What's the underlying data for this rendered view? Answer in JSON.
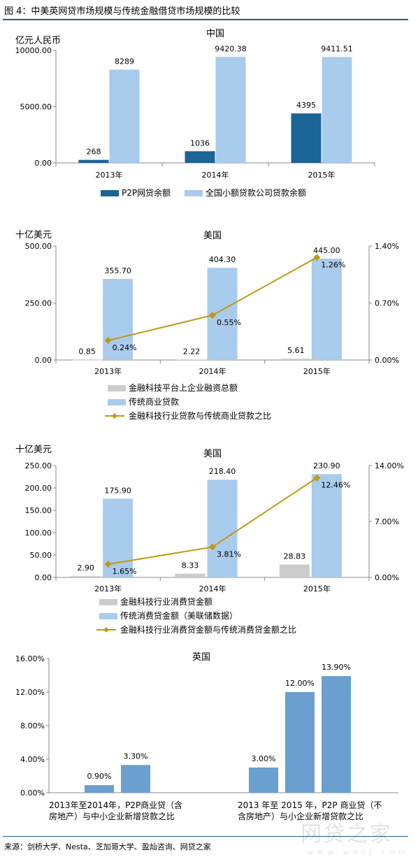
{
  "figure_title": "图 4：中美英网贷市场规模与传统金融借贷市场规模的比较",
  "source": "来源：剑桥大学、Nesta、芝加哥大学、盈灿咨询、网贷之家",
  "watermark": "网贷之家",
  "watermark_sub": "www.wdzj.com",
  "colors": {
    "dark_blue": "#1a6496",
    "light_blue": "#a9cbec",
    "gray": "#cccccc",
    "gold": "#c09a12",
    "uk_blue": "#6a9fcf",
    "rule": "#1f5f8b"
  },
  "chart_data": [
    {
      "type": "bar",
      "title": "中国",
      "ylabel": "亿元人民币",
      "categories": [
        "2013年",
        "2014年",
        "2015年"
      ],
      "ylim": [
        0,
        10000
      ],
      "yticks": [
        "0.00",
        "5000.00",
        "10000.00"
      ],
      "series": [
        {
          "name": "P2P网贷余额",
          "values": [
            268,
            1036,
            4395
          ],
          "labels": [
            "268",
            "1036",
            "4395"
          ]
        },
        {
          "name": "全国小额贷款公司贷款余额",
          "values": [
            8289,
            9420.38,
            9411.51
          ],
          "labels": [
            "8289",
            "9420.38",
            "9411.51"
          ]
        }
      ],
      "legend_placement": "bottom"
    },
    {
      "type": "bar",
      "title": "美国",
      "ylabel": "十亿美元",
      "categories": [
        "2013年",
        "2014年",
        "2015年"
      ],
      "ylim": [
        0,
        500
      ],
      "yticks": [
        "0.00",
        "250.00",
        "500.00"
      ],
      "y2lim": [
        0,
        0.014
      ],
      "y2ticks": [
        "0.00%",
        "0.70%",
        "1.40%"
      ],
      "series": [
        {
          "name": "金融科技平台上企业融资总额",
          "values": [
            0.85,
            2.22,
            5.61
          ],
          "labels": [
            "0.85",
            "2.22",
            "5.61"
          ]
        },
        {
          "name": "传统商业贷款",
          "values": [
            355.7,
            404.3,
            445.0
          ],
          "labels": [
            "355.70",
            "404.30",
            "445.00"
          ]
        },
        {
          "name": "金融科技行业贷款与传统商业贷款之比",
          "axis": "right",
          "values": [
            0.0024,
            0.0055,
            0.0126
          ],
          "labels": [
            "0.24%",
            "0.55%",
            "1.26%"
          ]
        }
      ],
      "legend_placement": "bottom"
    },
    {
      "type": "bar",
      "title": "美国",
      "ylabel": "十亿美元",
      "categories": [
        "2013年",
        "2014年",
        "2015年"
      ],
      "ylim": [
        0,
        250
      ],
      "yticks": [
        "0.00",
        "50.00",
        "100.00",
        "150.00",
        "200.00",
        "250.00"
      ],
      "y2lim": [
        0,
        0.14
      ],
      "y2ticks": [
        "0.00%",
        "7.00%",
        "14.00%"
      ],
      "series": [
        {
          "name": "金融科技行业消费贷金额",
          "values": [
            2.9,
            8.33,
            28.83
          ],
          "labels": [
            "2.90",
            "8.33",
            "28.83"
          ]
        },
        {
          "name": "传统消费贷金额（美联储数据）",
          "values": [
            175.9,
            218.4,
            230.9
          ],
          "labels": [
            "175.90",
            "218.40",
            "230.90"
          ]
        },
        {
          "name": "金融科技行业消费贷金额与传统消费贷金额之比",
          "axis": "right",
          "values": [
            0.0165,
            0.0381,
            0.1246
          ],
          "labels": [
            "1.65%",
            "3.81%",
            "12.46%"
          ]
        }
      ],
      "legend_placement": "bottom"
    },
    {
      "type": "bar",
      "title": "英国",
      "ylim": [
        0,
        0.16
      ],
      "yticks": [
        "0.00%",
        "4.00%",
        "8.00%",
        "12.00%",
        "16.00%"
      ],
      "groups": [
        {
          "label": "2013年至2014年，P2P商业贷（含房地产）与中小企业新增贷款之比",
          "label_lines": [
            "2013年至2014年，P2P商业贷（含",
            "房地产）与中小企业新增贷款之比"
          ],
          "values": [
            0.009,
            0.033
          ],
          "labels": [
            "0.90%",
            "3.30%"
          ]
        },
        {
          "label": "2013 年至 2015 年，P2P 商业贷（不含房地产）与小企业新增贷款之比",
          "label_lines": [
            "2013 年至 2015 年，P2P 商业贷（不",
            "含房地产）与小企业新增贷款之比"
          ],
          "values": [
            0.03,
            0.12,
            0.139
          ],
          "labels": [
            "3.00%",
            "12.00%",
            "13.90%"
          ]
        }
      ]
    }
  ]
}
